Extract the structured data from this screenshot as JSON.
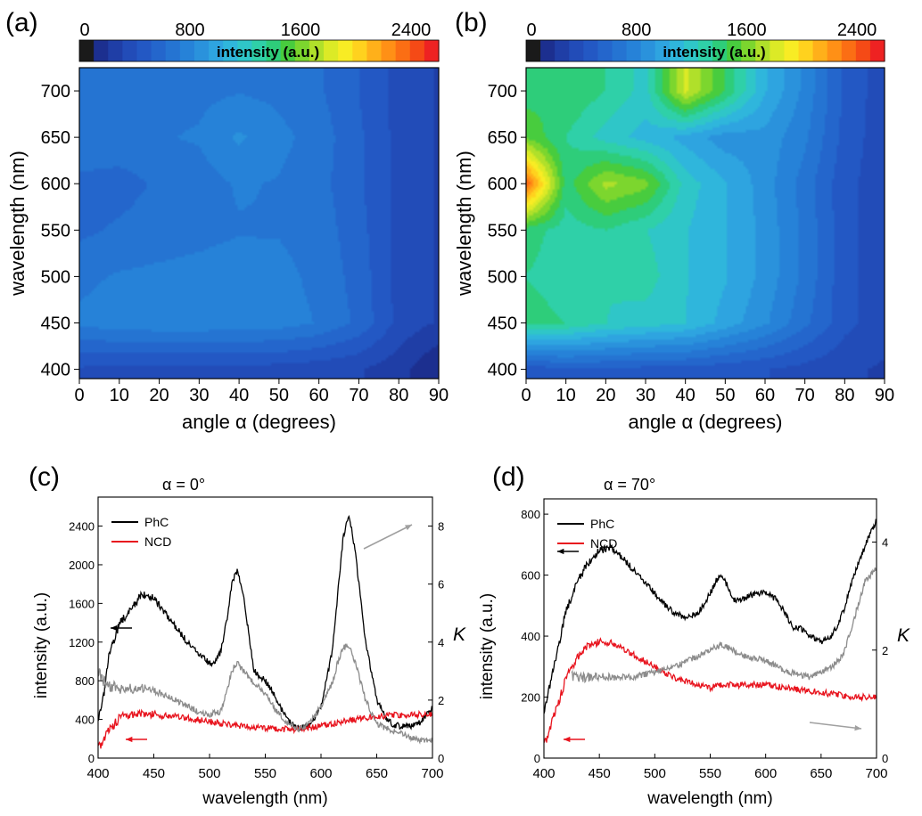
{
  "colorbar": {
    "ticks": [
      "0",
      "800",
      "1600",
      "2400"
    ],
    "tick_values": [
      0,
      800,
      1600,
      2400
    ],
    "range": [
      0,
      2600
    ],
    "label": "intensity (a.u.)",
    "colors": [
      "#1a1a1a",
      "#1c2f8f",
      "#1f3ea6",
      "#224cb8",
      "#2358c4",
      "#2466cc",
      "#2574d2",
      "#2682d8",
      "#2a92dc",
      "#2ea4e0",
      "#2fb6dc",
      "#2fc6c8",
      "#2fd0a8",
      "#2ecd7a",
      "#48cc3e",
      "#7cd62e",
      "#b0e02a",
      "#dcea26",
      "#f8ec24",
      "#ffd21e",
      "#ffb01a",
      "#ff9016",
      "#fb6e14",
      "#f54a16",
      "#ee2222"
    ]
  },
  "chart_data": [
    {
      "panel": "(a)",
      "type": "heatmap",
      "xlabel": "angle α (degrees)",
      "ylabel": "wavelength (nm)",
      "xlim": [
        0,
        90
      ],
      "ylim": [
        390,
        725
      ],
      "xticks": [
        0,
        10,
        20,
        30,
        40,
        50,
        60,
        70,
        80,
        90
      ],
      "yticks": [
        400,
        450,
        500,
        550,
        600,
        650,
        700
      ],
      "angles": [
        0,
        10,
        20,
        30,
        40,
        50,
        60,
        70,
        80,
        90
      ],
      "wavelengths": [
        400,
        450,
        500,
        550,
        600,
        650,
        700
      ],
      "values": [
        [
          400,
          380,
          380,
          380,
          380,
          370,
          350,
          320,
          250,
          100
        ],
        [
          750,
          790,
          800,
          800,
          790,
          780,
          720,
          600,
          380,
          300
        ],
        [
          700,
          740,
          750,
          760,
          780,
          760,
          700,
          580,
          380,
          300
        ],
        [
          600,
          640,
          680,
          700,
          720,
          720,
          680,
          560,
          380,
          300
        ],
        [
          600,
          580,
          640,
          680,
          740,
          720,
          660,
          540,
          380,
          300
        ],
        [
          700,
          700,
          720,
          740,
          850,
          760,
          680,
          540,
          380,
          300
        ],
        [
          700,
          680,
          680,
          700,
          720,
          700,
          640,
          520,
          380,
          300
        ]
      ]
    },
    {
      "panel": "(b)",
      "type": "heatmap",
      "xlabel": "angle α (degrees)",
      "ylabel": "wavelength (nm)",
      "xlim": [
        0,
        90
      ],
      "ylim": [
        390,
        725
      ],
      "xticks": [
        0,
        10,
        20,
        30,
        40,
        50,
        60,
        70,
        80,
        90
      ],
      "yticks": [
        400,
        450,
        500,
        550,
        600,
        650,
        700
      ],
      "angles": [
        0,
        10,
        20,
        30,
        40,
        50,
        60,
        70,
        80,
        90
      ],
      "wavelengths": [
        400,
        450,
        500,
        550,
        600,
        650,
        700
      ],
      "values": [
        [
          450,
          500,
          500,
          480,
          480,
          450,
          420,
          380,
          330,
          300
        ],
        [
          1400,
          1350,
          1250,
          1200,
          1150,
          1000,
          850,
          650,
          450,
          350
        ],
        [
          1350,
          1300,
          1250,
          1300,
          1150,
          1050,
          900,
          700,
          450,
          350
        ],
        [
          1400,
          1300,
          1350,
          1250,
          1150,
          1050,
          900,
          700,
          450,
          350
        ],
        [
          2400,
          1400,
          1700,
          1600,
          1200,
          1050,
          880,
          680,
          450,
          350
        ],
        [
          1550,
          1350,
          1200,
          1100,
          1000,
          880,
          900,
          750,
          480,
          350
        ],
        [
          1400,
          1450,
          1350,
          1200,
          1800,
          1450,
          1050,
          800,
          500,
          350
        ]
      ]
    },
    {
      "panel": "(c)",
      "type": "line",
      "annotation": "α = 0°",
      "xlabel": "wavelength (nm)",
      "ylabel": "intensity (a.u.)",
      "y2label": "K",
      "xlim": [
        400,
        700
      ],
      "ylim": [
        0,
        2700
      ],
      "y2lim": [
        0,
        9
      ],
      "xticks": [
        400,
        450,
        500,
        550,
        600,
        650,
        700
      ],
      "yticks": [
        0,
        400,
        800,
        1200,
        1600,
        2000,
        2400
      ],
      "y2ticks": [
        0,
        2,
        4,
        6,
        8
      ],
      "series": [
        {
          "name": "PhC",
          "color": "#000000",
          "axis": "left",
          "x": [
            400,
            405,
            410,
            420,
            430,
            440,
            450,
            460,
            470,
            480,
            490,
            500,
            505,
            510,
            515,
            520,
            525,
            530,
            540,
            550,
            555,
            560,
            570,
            580,
            590,
            600,
            610,
            615,
            620,
            625,
            630,
            640,
            650,
            660,
            665,
            670,
            680,
            690,
            700
          ],
          "y": [
            400,
            650,
            1100,
            1400,
            1550,
            1700,
            1650,
            1500,
            1350,
            1200,
            1080,
            980,
            1000,
            1100,
            1400,
            1800,
            1950,
            1700,
            900,
            800,
            720,
            600,
            400,
            300,
            340,
            520,
            1100,
            1700,
            2300,
            2500,
            2200,
            1200,
            600,
            380,
            350,
            330,
            320,
            380,
            520
          ]
        },
        {
          "name": "NCD",
          "color": "#e8141e",
          "axis": "left",
          "x": [
            400,
            410,
            420,
            430,
            440,
            450,
            470,
            500,
            530,
            560,
            580,
            600,
            620,
            640,
            660,
            680,
            700
          ],
          "y": [
            100,
            300,
            420,
            450,
            460,
            450,
            430,
            380,
            330,
            300,
            300,
            330,
            380,
            420,
            440,
            450,
            450
          ]
        },
        {
          "name": "K",
          "color": "#8c8c8c",
          "axis": "right",
          "x": [
            400,
            405,
            410,
            420,
            430,
            440,
            450,
            460,
            470,
            480,
            490,
            500,
            510,
            515,
            520,
            525,
            530,
            540,
            550,
            560,
            570,
            580,
            590,
            600,
            610,
            615,
            620,
            625,
            630,
            640,
            650,
            660,
            670,
            680,
            690,
            700
          ],
          "y": [
            3.0,
            2.6,
            2.5,
            2.4,
            2.4,
            2.4,
            2.3,
            2.2,
            2.0,
            1.8,
            1.6,
            1.5,
            1.6,
            2.2,
            3.0,
            3.3,
            3.0,
            2.6,
            2.2,
            1.6,
            1.2,
            1.0,
            1.2,
            1.8,
            2.6,
            3.3,
            3.8,
            3.9,
            3.4,
            2.0,
            1.2,
            1.0,
            0.9,
            0.7,
            0.6,
            0.6
          ]
        }
      ]
    },
    {
      "panel": "(d)",
      "type": "line",
      "annotation": "α = 70°",
      "xlabel": "wavelength (nm)",
      "ylabel": "intensity (a.u.)",
      "y2label": "K",
      "xlim": [
        400,
        700
      ],
      "ylim": [
        0,
        850
      ],
      "y2lim": [
        0,
        4.8
      ],
      "xticks": [
        400,
        450,
        500,
        550,
        600,
        650,
        700
      ],
      "yticks": [
        0,
        200,
        400,
        600,
        800
      ],
      "y2ticks": [
        0,
        2,
        4
      ],
      "series": [
        {
          "name": "PhC",
          "color": "#000000",
          "axis": "left",
          "x": [
            400,
            410,
            420,
            430,
            440,
            450,
            460,
            470,
            480,
            490,
            500,
            510,
            520,
            530,
            540,
            550,
            555,
            560,
            565,
            570,
            580,
            590,
            600,
            610,
            620,
            625,
            630,
            640,
            650,
            660,
            670,
            680,
            690,
            700
          ],
          "y": [
            150,
            320,
            480,
            580,
            640,
            680,
            690,
            660,
            620,
            580,
            540,
            500,
            470,
            460,
            480,
            540,
            580,
            600,
            570,
            520,
            520,
            540,
            540,
            520,
            460,
            420,
            430,
            400,
            380,
            400,
            480,
            600,
            700,
            780
          ]
        },
        {
          "name": "NCD",
          "color": "#e8141e",
          "axis": "left",
          "x": [
            400,
            410,
            420,
            430,
            440,
            450,
            460,
            470,
            480,
            490,
            500,
            510,
            520,
            530,
            540,
            550,
            560,
            570,
            580,
            600,
            620,
            640,
            660,
            680,
            700
          ],
          "y": [
            40,
            150,
            260,
            330,
            370,
            380,
            380,
            360,
            340,
            320,
            300,
            280,
            260,
            250,
            240,
            230,
            240,
            240,
            240,
            240,
            230,
            220,
            210,
            200,
            200
          ]
        },
        {
          "name": "K",
          "color": "#8c8c8c",
          "axis": "right",
          "x": [
            425,
            440,
            460,
            480,
            500,
            520,
            540,
            560,
            580,
            600,
            620,
            640,
            660,
            670,
            680,
            690,
            700
          ],
          "y": [
            1.5,
            1.5,
            1.5,
            1.5,
            1.6,
            1.7,
            1.9,
            2.1,
            1.9,
            1.8,
            1.6,
            1.5,
            1.7,
            1.9,
            2.6,
            3.3,
            3.5
          ]
        }
      ]
    }
  ]
}
